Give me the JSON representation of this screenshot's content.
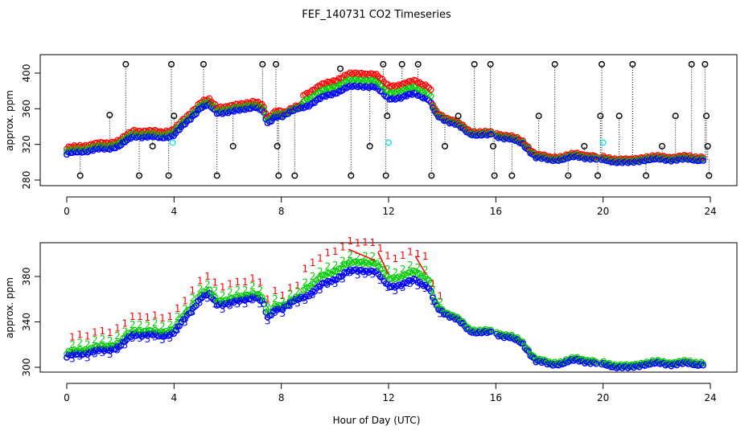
{
  "title": "FEF_140731  CO2 Timeseries",
  "xlabel": "Hour of Day (UTC)",
  "chart_data": [
    {
      "type": "scatter",
      "panel": "top",
      "ylabel": "approx. ppm",
      "xlim": [
        0,
        24
      ],
      "ylim": [
        277,
        418
      ],
      "xticks": [
        0,
        4,
        8,
        12,
        16,
        20,
        24
      ],
      "yticks": [
        280,
        320,
        360,
        400
      ],
      "colors": {
        "s1": "#ff0000",
        "s2": "#00cc00",
        "s3": "#0000ff",
        "spikes": "#000000",
        "cyan": "#00e5e5"
      },
      "profile": [
        [
          0,
          309
        ],
        [
          0.5,
          312
        ],
        [
          1.0,
          314
        ],
        [
          1.5,
          315
        ],
        [
          2.0,
          319
        ],
        [
          2.5,
          329
        ],
        [
          3.0,
          329
        ],
        [
          3.5,
          327
        ],
        [
          4.0,
          331
        ],
        [
          4.5,
          345
        ],
        [
          5.0,
          362
        ],
        [
          5.3,
          364
        ],
        [
          5.6,
          355
        ],
        [
          6.0,
          357
        ],
        [
          6.5,
          358
        ],
        [
          7.0,
          363
        ],
        [
          7.3,
          358
        ],
        [
          7.5,
          342
        ],
        [
          7.8,
          352
        ],
        [
          8.0,
          352
        ],
        [
          8.5,
          358
        ],
        [
          9.0,
          364
        ],
        [
          9.5,
          372
        ],
        [
          10.0,
          378
        ],
        [
          10.5,
          384
        ],
        [
          11.0,
          386
        ],
        [
          11.5,
          384
        ],
        [
          12.0,
          372
        ],
        [
          12.5,
          372
        ],
        [
          13.0,
          378
        ],
        [
          13.5,
          370
        ],
        [
          13.8,
          352
        ],
        [
          14.0,
          349
        ],
        [
          14.5,
          343
        ],
        [
          15.0,
          332
        ],
        [
          15.5,
          331
        ],
        [
          16.0,
          329
        ],
        [
          16.5,
          327
        ],
        [
          17.0,
          320
        ],
        [
          17.5,
          306
        ],
        [
          18.0,
          302
        ],
        [
          18.5,
          304
        ],
        [
          19.0,
          306
        ],
        [
          19.5,
          305
        ],
        [
          20.0,
          302
        ],
        [
          20.5,
          301
        ],
        [
          21.0,
          299
        ],
        [
          21.5,
          303
        ],
        [
          22.0,
          303
        ],
        [
          22.5,
          303
        ],
        [
          23.0,
          303
        ],
        [
          23.8,
          303
        ]
      ],
      "gaps": [
        [
          15.85,
          16.0
        ],
        [
          19.75,
          19.95
        ]
      ],
      "elevated_ranges": [
        [
          8.8,
          13.6
        ]
      ],
      "spikes": [
        {
          "x": 0.5,
          "y": 285
        },
        {
          "x": 1.6,
          "y": 353
        },
        {
          "x": 2.2,
          "y": 410
        },
        {
          "x": 2.7,
          "y": 285
        },
        {
          "x": 3.2,
          "y": 318
        },
        {
          "x": 3.8,
          "y": 285
        },
        {
          "x": 3.9,
          "y": 410
        },
        {
          "x": 4.0,
          "y": 352
        },
        {
          "x": 5.1,
          "y": 410
        },
        {
          "x": 5.6,
          "y": 285
        },
        {
          "x": 6.2,
          "y": 318
        },
        {
          "x": 7.3,
          "y": 410
        },
        {
          "x": 7.8,
          "y": 410
        },
        {
          "x": 7.85,
          "y": 318
        },
        {
          "x": 7.9,
          "y": 285
        },
        {
          "x": 8.5,
          "y": 285
        },
        {
          "x": 10.2,
          "y": 405
        },
        {
          "x": 10.6,
          "y": 285
        },
        {
          "x": 11.3,
          "y": 318
        },
        {
          "x": 11.8,
          "y": 410
        },
        {
          "x": 11.9,
          "y": 285
        },
        {
          "x": 11.95,
          "y": 352
        },
        {
          "x": 12.5,
          "y": 410
        },
        {
          "x": 13.1,
          "y": 410
        },
        {
          "x": 13.6,
          "y": 285
        },
        {
          "x": 14.1,
          "y": 318
        },
        {
          "x": 14.6,
          "y": 352
        },
        {
          "x": 15.2,
          "y": 410
        },
        {
          "x": 15.8,
          "y": 410
        },
        {
          "x": 15.9,
          "y": 318
        },
        {
          "x": 15.95,
          "y": 285
        },
        {
          "x": 16.6,
          "y": 285
        },
        {
          "x": 17.6,
          "y": 352
        },
        {
          "x": 18.2,
          "y": 410
        },
        {
          "x": 18.7,
          "y": 285
        },
        {
          "x": 19.3,
          "y": 318
        },
        {
          "x": 19.8,
          "y": 285
        },
        {
          "x": 19.9,
          "y": 352
        },
        {
          "x": 19.95,
          "y": 410
        },
        {
          "x": 20.6,
          "y": 352
        },
        {
          "x": 21.1,
          "y": 410
        },
        {
          "x": 21.6,
          "y": 285
        },
        {
          "x": 22.2,
          "y": 318
        },
        {
          "x": 22.7,
          "y": 352
        },
        {
          "x": 23.3,
          "y": 410
        },
        {
          "x": 23.8,
          "y": 410
        },
        {
          "x": 23.85,
          "y": 352
        },
        {
          "x": 23.9,
          "y": 318
        },
        {
          "x": 23.95,
          "y": 285
        }
      ],
      "cyan_points": [
        {
          "x": 3.95,
          "y": 322
        },
        {
          "x": 12.0,
          "y": 322
        },
        {
          "x": 20.0,
          "y": 322
        }
      ]
    },
    {
      "type": "scatter",
      "panel": "bottom",
      "ylabel": "approx. ppm",
      "xlim": [
        0,
        24
      ],
      "ylim": [
        294,
        408
      ],
      "xticks": [
        0,
        4,
        8,
        12,
        16,
        20,
        24
      ],
      "yticks": [
        300,
        340,
        380
      ],
      "series_labels": [
        "1",
        "2",
        "3"
      ],
      "colors": {
        "s1": "#ff0000",
        "s2": "#00cc00",
        "s3": "#0000ff"
      },
      "note": "same CO2 profile as top panel; label '1' (red), '2' (green), '3' (blue) drawn at selected points"
    }
  ]
}
